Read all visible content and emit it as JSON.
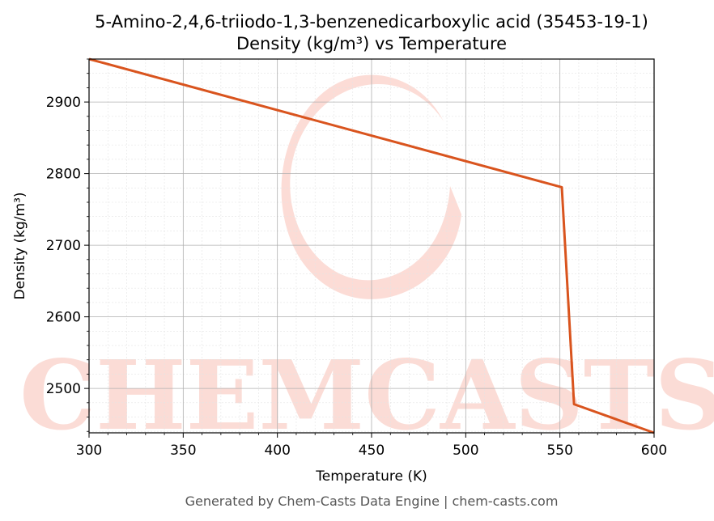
{
  "chart_data": {
    "type": "line",
    "title": "5-Amino-2,4,6-triiodo-1,3-benzenedicarboxylic acid (35453-19-1)",
    "subtitle": "Density (kg/m³) vs Temperature",
    "xlabel": "Temperature (K)",
    "ylabel": "Density (kg/m³)",
    "xlim": [
      300,
      600
    ],
    "ylim": [
      2438,
      2960
    ],
    "xticks": [
      300,
      350,
      400,
      450,
      500,
      550,
      600
    ],
    "yticks": [
      2500,
      2600,
      2700,
      2800,
      2900
    ],
    "grid": true,
    "line_color": "#d9541e",
    "series": [
      {
        "x": [
          300,
          551,
          557.5,
          600
        ],
        "y": [
          2960,
          2781,
          2478,
          2438
        ]
      }
    ]
  },
  "footer": "Generated by Chem-Casts Data Engine | chem-casts.com",
  "watermark": "CHEMCASTS"
}
